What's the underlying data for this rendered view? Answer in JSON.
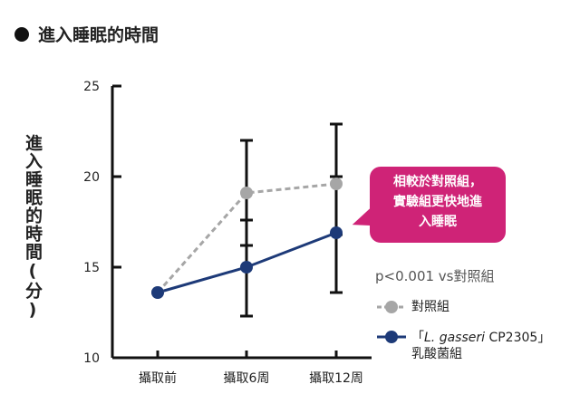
{
  "title": "進入睡眠的時間",
  "ylabel": "進入睡眠的時間(分)",
  "callout": {
    "lines": [
      "相較於對照組，",
      "實驗組更快地進",
      "入睡眠"
    ]
  },
  "pvalue": "p<0.001 vs對照組",
  "legend": {
    "control": "對照組",
    "treat_line1_a": "「",
    "treat_line1_b": "L. gasseri",
    "treat_line1_c": " CP2305」",
    "treat_line2": "乳酸菌組"
  },
  "colors": {
    "control": "#a6a6a6",
    "treatment": "#1d3a78",
    "callout": "#cf2377",
    "axis": "#111111"
  },
  "chart_data": {
    "type": "line",
    "title": "進入睡眠的時間",
    "xlabel": "",
    "ylabel": "進入睡眠的時間(分)",
    "categories": [
      "攝取前",
      "攝取6周",
      "攝取12周"
    ],
    "yticks": [
      10,
      15,
      20,
      25
    ],
    "ylim": [
      10,
      25
    ],
    "series": [
      {
        "name": "對照組",
        "values": [
          13.6,
          19.1,
          19.6
        ],
        "style": "dashed",
        "color": "#a6a6a6",
        "error": [
          null,
          [
            16.2,
            22.0
          ],
          [
            16.8,
            22.9
          ]
        ]
      },
      {
        "name": "「L. gasseri CP2305」乳酸菌組",
        "values": [
          13.6,
          15.0,
          16.9
        ],
        "style": "solid",
        "color": "#1d3a78",
        "error": [
          null,
          [
            12.3,
            17.6
          ],
          [
            13.6,
            20.0
          ]
        ]
      }
    ]
  }
}
